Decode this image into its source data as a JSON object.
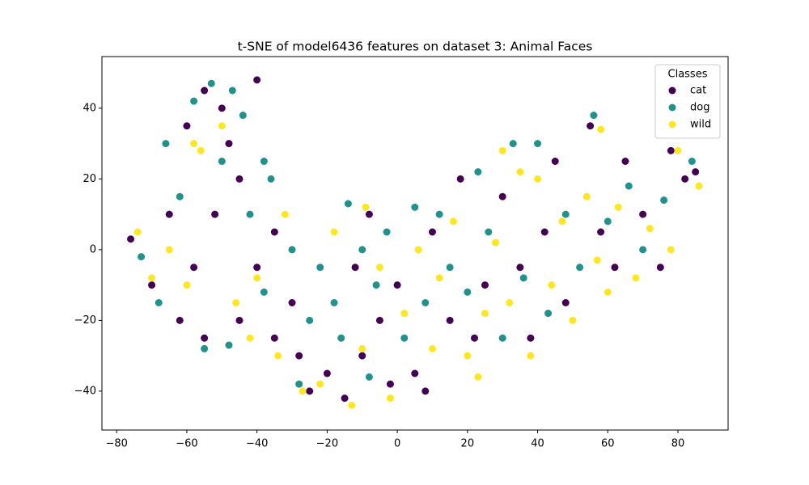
{
  "chart_data": {
    "type": "scatter",
    "title": "t-SNE of model6436 features on dataset 3: Animal Faces",
    "legend_title": "Classes",
    "legend": "upper right",
    "xlim": [
      -84.2,
      94.3
    ],
    "ylim": [
      -51.0,
      54.6
    ],
    "xticks": [
      {
        "value": -80,
        "label": "−80"
      },
      {
        "value": -60,
        "label": "−60"
      },
      {
        "value": -40,
        "label": "−40"
      },
      {
        "value": -20,
        "label": "−20"
      },
      0,
      20,
      40,
      60,
      80
    ],
    "yticks": [
      {
        "value": -40,
        "label": "−40"
      },
      {
        "value": -20,
        "label": "−20"
      },
      0,
      20,
      40
    ],
    "series": [
      {
        "name": "cat",
        "color": "#440154",
        "x": [
          -76,
          -70,
          -65,
          -60,
          -55,
          -50,
          -48,
          -45,
          -40,
          -52,
          -58,
          -55,
          -45,
          -40,
          -35,
          -30,
          -28,
          -25,
          -20,
          -15,
          -10,
          -12,
          -8,
          -5,
          0,
          5,
          8,
          10,
          15,
          18,
          22,
          25,
          30,
          35,
          38,
          42,
          45,
          48,
          55,
          58,
          62,
          65,
          70,
          75,
          78,
          82,
          85,
          -62,
          -35,
          -2
        ],
        "y": [
          3,
          -10,
          10,
          35,
          45,
          40,
          30,
          20,
          48,
          10,
          -5,
          -25,
          -20,
          -5,
          5,
          -15,
          -30,
          -40,
          -35,
          -42,
          -30,
          -5,
          10,
          -20,
          -10,
          -35,
          -40,
          5,
          -20,
          20,
          -25,
          -10,
          15,
          -5,
          -25,
          5,
          25,
          -15,
          35,
          5,
          -5,
          25,
          10,
          -5,
          28,
          20,
          22,
          -20,
          -25,
          -38
        ]
      },
      {
        "name": "dog",
        "color": "#21918c",
        "x": [
          -73,
          -68,
          -66,
          -58,
          -53,
          -47,
          -44,
          -50,
          -38,
          -42,
          -36,
          -62,
          -55,
          -48,
          -38,
          -30,
          -25,
          -22,
          -18,
          -14,
          -10,
          -6,
          -3,
          2,
          5,
          8,
          12,
          15,
          20,
          23,
          26,
          30,
          33,
          36,
          40,
          43,
          48,
          52,
          56,
          60,
          66,
          70,
          76,
          84,
          -28,
          -8,
          -16
        ],
        "y": [
          -2,
          -15,
          30,
          42,
          47,
          45,
          38,
          25,
          25,
          10,
          20,
          15,
          -28,
          -27,
          -12,
          0,
          -20,
          -5,
          -15,
          13,
          0,
          -10,
          5,
          -25,
          12,
          -15,
          10,
          -5,
          -12,
          22,
          5,
          -25,
          30,
          -8,
          30,
          -18,
          10,
          -5,
          38,
          8,
          18,
          0,
          14,
          25,
          -38,
          -36,
          -25
        ]
      },
      {
        "name": "wild",
        "color": "#fde725",
        "x": [
          -74,
          -70,
          -65,
          -60,
          -56,
          -50,
          -46,
          -42,
          -34,
          -32,
          -27,
          -22,
          -18,
          -13,
          -10,
          -9,
          -5,
          -2,
          2,
          6,
          10,
          12,
          16,
          20,
          23,
          25,
          28,
          32,
          35,
          38,
          40,
          44,
          47,
          50,
          54,
          57,
          60,
          63,
          68,
          72,
          78,
          80,
          86,
          58,
          30,
          -58,
          -40
        ],
        "y": [
          5,
          -8,
          0,
          -10,
          28,
          35,
          -15,
          -25,
          -30,
          10,
          -40,
          -38,
          5,
          -44,
          -28,
          12,
          -5,
          -42,
          -18,
          0,
          -28,
          -8,
          8,
          -30,
          -36,
          -18,
          2,
          -15,
          22,
          -30,
          20,
          -10,
          8,
          -20,
          15,
          -3,
          -12,
          12,
          -8,
          6,
          0,
          28,
          18,
          34,
          28,
          30,
          -8
        ]
      }
    ]
  }
}
